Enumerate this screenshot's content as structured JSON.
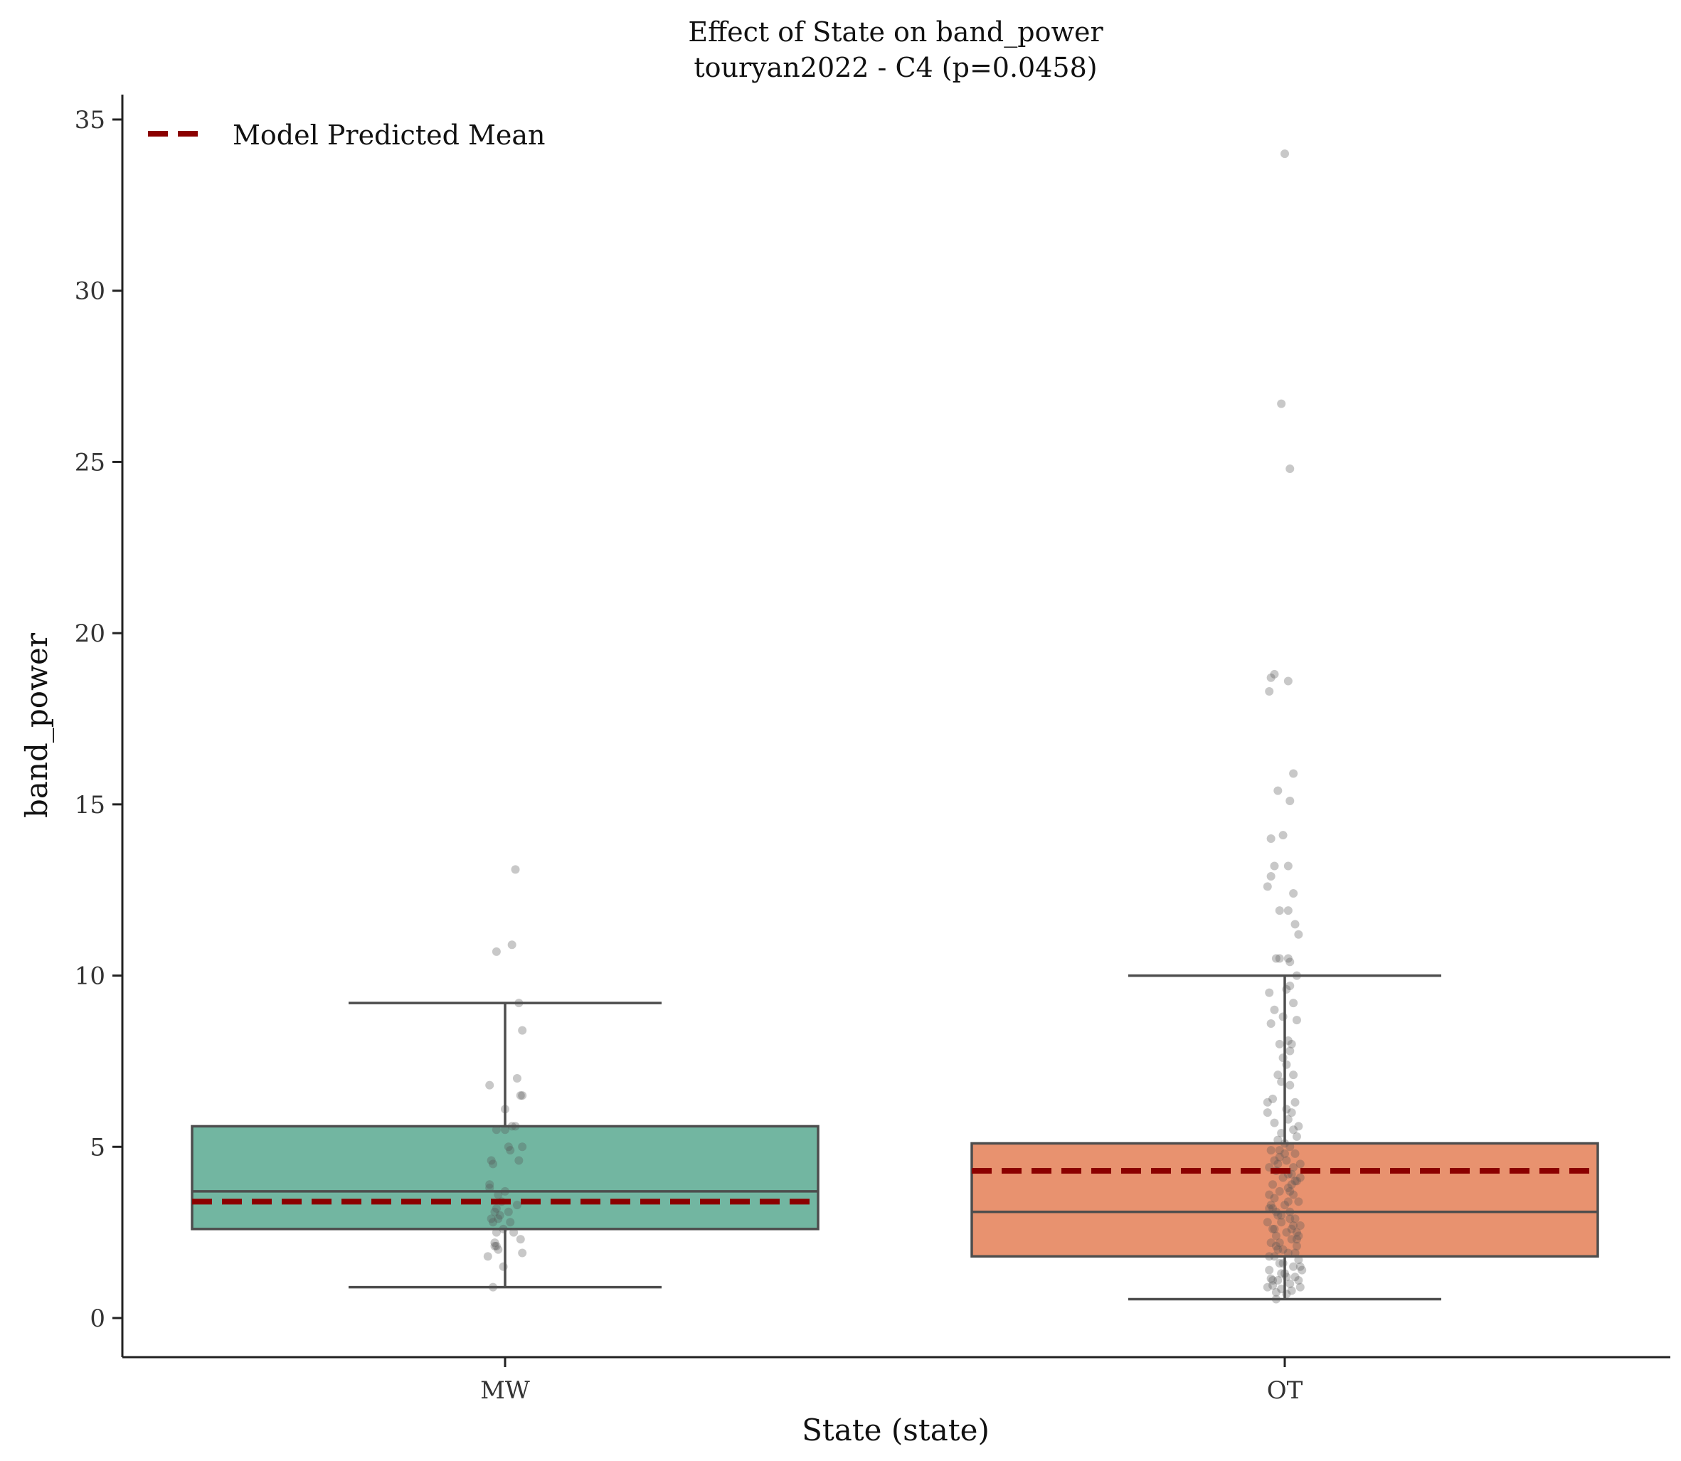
{
  "chart_data": {
    "type": "box",
    "title": "Effect of State on band_power",
    "subtitle": "touryan2022 - C4 (p=0.0458)",
    "xlabel": "State (state)",
    "ylabel": "band_power",
    "ylim": [
      -1.1,
      35.7
    ],
    "yticks": [
      0,
      5,
      10,
      15,
      20,
      25,
      30,
      35
    ],
    "categories": [
      "MW",
      "OT"
    ],
    "legend": {
      "label": "Model Predicted Mean",
      "placement": "top-left",
      "color": "#8b0000"
    },
    "grid": false,
    "boxes": [
      {
        "category": "MW",
        "color": "#72b6a1",
        "whisker_low": 0.9,
        "q1": 2.6,
        "median": 3.7,
        "q3": 5.6,
        "whisker_high": 9.2,
        "model_mean": 3.4,
        "points": [
          [
            -0.09,
            6.8
          ],
          [
            0.06,
            13.1
          ],
          [
            -0.05,
            10.7
          ],
          [
            0.04,
            10.9
          ],
          [
            0.08,
            9.2
          ],
          [
            0.1,
            8.4
          ],
          [
            0.07,
            7.0
          ],
          [
            0.09,
            6.5
          ],
          [
            0.1,
            6.5
          ],
          [
            0.0,
            6.1
          ],
          [
            -0.05,
            5.5
          ],
          [
            0.0,
            5.5
          ],
          [
            0.04,
            5.6
          ],
          [
            0.06,
            5.6
          ],
          [
            0.02,
            5.0
          ],
          [
            0.03,
            4.9
          ],
          [
            0.1,
            5.0
          ],
          [
            -0.07,
            4.5
          ],
          [
            -0.08,
            4.6
          ],
          [
            0.08,
            4.6
          ],
          [
            -0.09,
            3.9
          ],
          [
            -0.09,
            3.8
          ],
          [
            -0.04,
            3.6
          ],
          [
            0.0,
            3.7
          ],
          [
            0.07,
            3.3
          ],
          [
            -0.02,
            3.4
          ],
          [
            -0.05,
            3.2
          ],
          [
            -0.06,
            3.1
          ],
          [
            -0.03,
            3.0
          ],
          [
            0.02,
            3.1
          ],
          [
            -0.04,
            2.9
          ],
          [
            -0.08,
            2.9
          ],
          [
            -0.07,
            2.8
          ],
          [
            0.03,
            2.8
          ],
          [
            -0.01,
            2.6
          ],
          [
            -0.05,
            2.5
          ],
          [
            0.05,
            2.5
          ],
          [
            -0.06,
            2.2
          ],
          [
            0.09,
            2.3
          ],
          [
            -0.05,
            2.1
          ],
          [
            -0.04,
            2.0
          ],
          [
            -0.06,
            2.1
          ],
          [
            -0.1,
            1.8
          ],
          [
            0.1,
            1.9
          ],
          [
            -0.01,
            1.5
          ],
          [
            -0.07,
            0.9
          ]
        ]
      },
      {
        "category": "OT",
        "color": "#e8926f",
        "whisker_low": 0.55,
        "q1": 1.8,
        "median": 3.1,
        "q3": 5.1,
        "whisker_high": 10.0,
        "model_mean": 4.3,
        "points": [
          [
            0.0,
            34.0
          ],
          [
            -0.02,
            26.7
          ],
          [
            0.03,
            24.8
          ],
          [
            -0.08,
            18.7
          ],
          [
            -0.06,
            18.8
          ],
          [
            -0.09,
            18.3
          ],
          [
            0.02,
            18.6
          ],
          [
            0.05,
            15.9
          ],
          [
            -0.04,
            15.4
          ],
          [
            0.03,
            15.1
          ],
          [
            -0.08,
            14.0
          ],
          [
            -0.01,
            14.1
          ],
          [
            -0.06,
            13.2
          ],
          [
            0.02,
            13.2
          ],
          [
            -0.08,
            12.9
          ],
          [
            -0.1,
            12.6
          ],
          [
            0.05,
            12.4
          ],
          [
            -0.03,
            11.9
          ],
          [
            0.02,
            11.9
          ],
          [
            0.08,
            11.2
          ],
          [
            0.06,
            11.5
          ],
          [
            -0.03,
            10.5
          ],
          [
            -0.05,
            10.5
          ],
          [
            0.02,
            10.5
          ],
          [
            0.03,
            10.4
          ],
          [
            0.07,
            10.0
          ],
          [
            -0.09,
            9.5
          ],
          [
            0.01,
            9.6
          ],
          [
            0.03,
            9.7
          ],
          [
            0.05,
            9.2
          ],
          [
            -0.06,
            9.0
          ],
          [
            0.07,
            8.7
          ],
          [
            -0.08,
            8.6
          ],
          [
            -0.01,
            8.8
          ],
          [
            0.02,
            8.1
          ],
          [
            0.04,
            8.0
          ],
          [
            -0.03,
            8.0
          ],
          [
            0.03,
            7.8
          ],
          [
            -0.01,
            7.6
          ],
          [
            0.01,
            7.4
          ],
          [
            -0.04,
            7.1
          ],
          [
            0.05,
            7.1
          ],
          [
            -0.02,
            6.9
          ],
          [
            0.03,
            6.8
          ],
          [
            -0.07,
            6.4
          ],
          [
            0.06,
            6.3
          ],
          [
            -0.1,
            6.3
          ],
          [
            -0.1,
            6.0
          ],
          [
            0.04,
            6.0
          ],
          [
            0.01,
            6.1
          ],
          [
            0.08,
            5.6
          ],
          [
            -0.06,
            5.7
          ],
          [
            0.02,
            5.8
          ],
          [
            0.05,
            5.5
          ],
          [
            -0.02,
            5.4
          ],
          [
            0.07,
            5.3
          ],
          [
            -0.04,
            5.2
          ],
          [
            0.0,
            5.1
          ],
          [
            0.03,
            5.0
          ],
          [
            -0.08,
            4.9
          ],
          [
            0.06,
            4.8
          ],
          [
            -0.03,
            4.7
          ],
          [
            0.01,
            4.6
          ],
          [
            0.09,
            4.5
          ],
          [
            -0.09,
            4.4
          ],
          [
            -0.05,
            4.3
          ],
          [
            0.04,
            4.2
          ],
          [
            -0.01,
            4.1
          ],
          [
            0.07,
            4.0
          ],
          [
            -0.07,
            3.9
          ],
          [
            0.02,
            3.8
          ],
          [
            -0.03,
            3.7
          ],
          [
            0.05,
            3.6
          ],
          [
            -0.06,
            3.5
          ],
          [
            0.08,
            3.4
          ],
          [
            0.0,
            3.3
          ],
          [
            -0.09,
            3.2
          ],
          [
            0.03,
            3.1
          ],
          [
            -0.04,
            3.0
          ],
          [
            0.06,
            2.9
          ],
          [
            -0.02,
            2.8
          ],
          [
            0.09,
            2.7
          ],
          [
            -0.07,
            2.6
          ],
          [
            0.01,
            2.5
          ],
          [
            -0.05,
            2.4
          ],
          [
            0.04,
            2.3
          ],
          [
            -0.08,
            2.2
          ],
          [
            0.07,
            2.1
          ],
          [
            -0.01,
            2.0
          ],
          [
            0.02,
            1.9
          ],
          [
            -0.06,
            1.8
          ],
          [
            0.08,
            1.7
          ],
          [
            -0.03,
            1.6
          ],
          [
            0.05,
            1.5
          ],
          [
            -0.09,
            1.4
          ],
          [
            0.0,
            1.3
          ],
          [
            0.06,
            1.2
          ],
          [
            -0.04,
            1.1
          ],
          [
            0.03,
            1.0
          ],
          [
            -0.07,
            0.95
          ],
          [
            0.09,
            0.9
          ],
          [
            -0.02,
            0.85
          ],
          [
            0.04,
            0.8
          ],
          [
            -0.05,
            0.75
          ],
          [
            0.01,
            0.7
          ],
          [
            -0.1,
            0.9
          ],
          [
            -0.05,
            0.55
          ],
          [
            0.08,
            1.1
          ],
          [
            -0.08,
            1.15
          ],
          [
            0.05,
            4.4
          ],
          [
            -0.04,
            4.5
          ],
          [
            0.02,
            3.4
          ],
          [
            -0.06,
            2.6
          ],
          [
            0.07,
            2.3
          ],
          [
            -0.02,
            1.3
          ],
          [
            0.09,
            4.1
          ],
          [
            -0.09,
            3.6
          ],
          [
            0.03,
            2.9
          ],
          [
            -0.03,
            2.2
          ],
          [
            0.06,
            1.9
          ],
          [
            -0.07,
            1.1
          ],
          [
            0.0,
            4.8
          ],
          [
            0.04,
            3.9
          ],
          [
            -0.05,
            3.1
          ],
          [
            0.08,
            2.4
          ],
          [
            -0.01,
            1.6
          ],
          [
            0.02,
            4.2
          ],
          [
            -0.08,
            3.3
          ],
          [
            0.05,
            2.7
          ],
          [
            -0.04,
            2.0
          ],
          [
            0.1,
            1.4
          ],
          [
            -0.06,
            4.6
          ],
          [
            0.03,
            3.7
          ],
          [
            -0.02,
            3.0
          ],
          [
            0.07,
            2.5
          ],
          [
            -0.09,
            1.8
          ],
          [
            0.01,
            1.2
          ],
          [
            -0.03,
            4.9
          ],
          [
            0.06,
            4.0
          ],
          [
            -0.07,
            3.2
          ],
          [
            0.04,
            2.6
          ],
          [
            -0.05,
            2.1
          ],
          [
            0.09,
            1.5
          ],
          [
            -0.1,
            2.8
          ]
        ]
      }
    ]
  }
}
